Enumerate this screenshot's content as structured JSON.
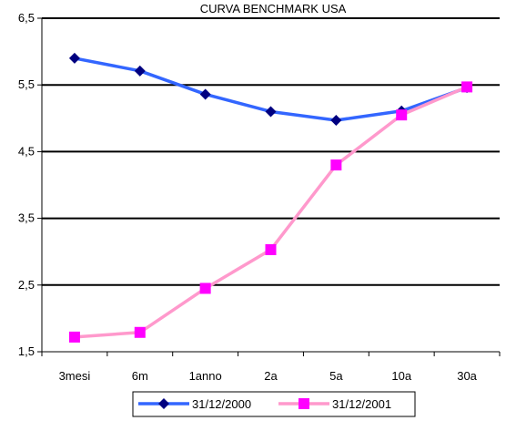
{
  "chart_data": {
    "type": "line",
    "title": "CURVA BENCHMARK USA",
    "xlabel": "",
    "ylabel": "",
    "categories": [
      "3mesi",
      "6m",
      "1anno",
      "2a",
      "5a",
      "10a",
      "30a"
    ],
    "ylim": [
      1.5,
      6.5
    ],
    "yticks": [
      "1,5",
      "2,5",
      "3,5",
      "4,5",
      "5,5",
      "6,5"
    ],
    "grid": "horizontal",
    "legend_position": "bottom",
    "series": [
      {
        "name": "31/12/2000",
        "color": "#3366ff",
        "marker_color": "#000080",
        "marker": "diamond",
        "values": [
          5.9,
          5.71,
          5.36,
          5.1,
          4.97,
          5.11,
          5.46
        ]
      },
      {
        "name": "31/12/2001",
        "color": "#ff99cc",
        "marker_color": "#ff00ff",
        "marker": "square",
        "values": [
          1.72,
          1.79,
          2.45,
          3.03,
          4.3,
          5.05,
          5.47
        ]
      }
    ]
  }
}
